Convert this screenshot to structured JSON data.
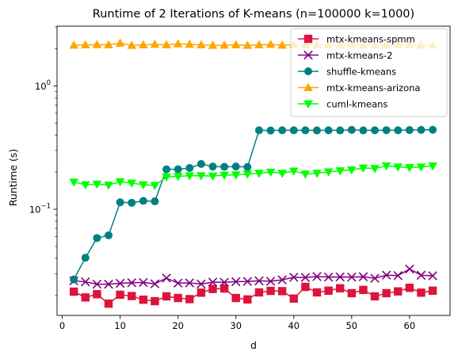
{
  "chart_data": {
    "type": "line",
    "title": "Runtime of 2 Iterations of K-means (n=100000 k=1000)",
    "xlabel": "d",
    "ylabel": "Runtime (s)",
    "xlim": [
      -0.9,
      67
    ],
    "ylim": [
      0.0138,
      3.05
    ],
    "yscale": "log",
    "x_ticks": [
      0,
      10,
      20,
      30,
      40,
      50,
      60
    ],
    "y_ticks": [
      {
        "value": 0.1,
        "base": "10",
        "exp": "−1"
      },
      {
        "value": 1,
        "base": "10",
        "exp": "0"
      }
    ],
    "legend_position": "upper-right",
    "grid": false,
    "x": [
      2,
      4,
      6,
      8,
      10,
      12,
      14,
      16,
      18,
      20,
      22,
      24,
      26,
      28,
      30,
      32,
      34,
      36,
      38,
      40,
      42,
      44,
      46,
      48,
      50,
      52,
      54,
      56,
      58,
      60,
      62,
      64
    ],
    "series": [
      {
        "name": "mtx-kmeans-spmm",
        "color": "#dc143c",
        "marker": "square",
        "values": [
          0.0215,
          0.0193,
          0.0205,
          0.0172,
          0.0203,
          0.0198,
          0.0185,
          0.018,
          0.0197,
          0.0191,
          0.0187,
          0.0211,
          0.0226,
          0.0228,
          0.0191,
          0.0186,
          0.0212,
          0.0218,
          0.0217,
          0.0189,
          0.0235,
          0.0212,
          0.0219,
          0.0229,
          0.0209,
          0.0222,
          0.0197,
          0.0209,
          0.0216,
          0.0231,
          0.0211,
          0.0219
        ]
      },
      {
        "name": "mtx-kmeans-2",
        "color": "#800080",
        "marker": "x",
        "values": [
          0.0263,
          0.0258,
          0.0247,
          0.0247,
          0.0251,
          0.0254,
          0.0255,
          0.0249,
          0.0277,
          0.0252,
          0.0253,
          0.0248,
          0.0257,
          0.0256,
          0.0259,
          0.026,
          0.0263,
          0.0261,
          0.0268,
          0.0281,
          0.028,
          0.0285,
          0.0282,
          0.0283,
          0.0282,
          0.0284,
          0.0276,
          0.0293,
          0.029,
          0.0328,
          0.0292,
          0.0289
        ]
      },
      {
        "name": "shuffle-kmeans",
        "color": "#008080",
        "marker": "circle",
        "values": [
          0.027,
          0.0405,
          0.0585,
          0.0615,
          0.114,
          0.113,
          0.117,
          0.116,
          0.211,
          0.211,
          0.216,
          0.233,
          0.222,
          0.221,
          0.222,
          0.22,
          0.437,
          0.435,
          0.437,
          0.437,
          0.437,
          0.436,
          0.437,
          0.436,
          0.44,
          0.436,
          0.437,
          0.438,
          0.437,
          0.439,
          0.44,
          0.441
        ]
      },
      {
        "name": "mtx-kmeans-arizona",
        "color": "#ffa500",
        "marker": "triangle-up",
        "values": [
          2.14,
          2.15,
          2.16,
          2.15,
          2.22,
          2.13,
          2.15,
          2.17,
          2.15,
          2.19,
          2.17,
          2.15,
          2.13,
          2.14,
          2.15,
          2.13,
          2.15,
          2.17,
          2.14,
          2.16,
          2.15,
          2.15,
          2.15,
          2.14,
          2.16,
          2.14,
          2.16,
          2.14,
          2.15,
          2.15,
          2.14,
          2.14
        ]
      },
      {
        "name": "cuml-kmeans",
        "color": "#00ff00",
        "marker": "triangle-down",
        "values": [
          0.166,
          0.158,
          0.16,
          0.157,
          0.167,
          0.163,
          0.158,
          0.156,
          0.183,
          0.185,
          0.187,
          0.187,
          0.186,
          0.189,
          0.19,
          0.193,
          0.196,
          0.2,
          0.196,
          0.204,
          0.193,
          0.196,
          0.201,
          0.205,
          0.209,
          0.216,
          0.214,
          0.225,
          0.22,
          0.218,
          0.22,
          0.225
        ]
      }
    ]
  }
}
